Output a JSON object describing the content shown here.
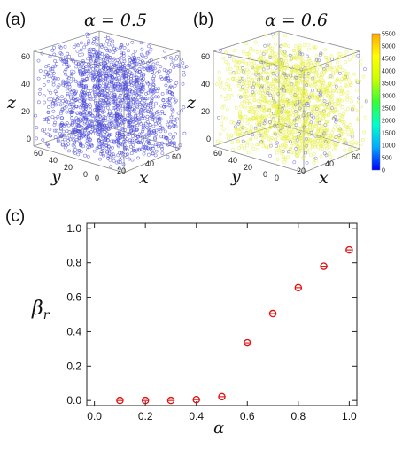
{
  "chart_data": [
    {
      "id": "a",
      "panel_label": "(a)",
      "type": "scatter3d",
      "title": "α = 0.5",
      "axes": {
        "x": "x",
        "y": "y",
        "z": "z"
      },
      "ticks": {
        "x": [
          "0",
          "20",
          "40",
          "60"
        ],
        "y": [
          "0",
          "20",
          "40",
          "60"
        ],
        "z": [
          "0",
          "20",
          "40",
          "60"
        ]
      },
      "point_color": "#4a4ad8",
      "description": "uniform cloud of points colored low on colorbar"
    },
    {
      "id": "b",
      "panel_label": "(b)",
      "type": "scatter3d",
      "title": "α = 0.6",
      "axes": {
        "x": "x",
        "y": "y",
        "z": "z"
      },
      "ticks": {
        "x": [
          "0",
          "20",
          "40",
          "60"
        ],
        "y": [
          "0",
          "20",
          "40",
          "60"
        ],
        "z": [
          "0",
          "20",
          "40",
          "60"
        ]
      },
      "point_color": "#e6ef3a",
      "minority_color": "#6a6ad8",
      "colorbar": {
        "ticks": [
          "0",
          "500",
          "1000",
          "1500",
          "2000",
          "2500",
          "3000",
          "3500",
          "4000",
          "4500",
          "5000",
          "5500"
        ],
        "range": [
          0,
          5500
        ],
        "colors": [
          "#0000ff",
          "#00aaff",
          "#00ffcc",
          "#33ff33",
          "#ccff00",
          "#ffff00",
          "#ffaa00"
        ]
      }
    },
    {
      "id": "c",
      "panel_label": "(c)",
      "type": "scatter",
      "xlabel": "α",
      "ylabel": "βr",
      "xlim": [
        -0.03,
        1.03
      ],
      "ylim": [
        -0.03,
        1.03
      ],
      "xticks": [
        0.0,
        0.2,
        0.4,
        0.6,
        0.8,
        1.0
      ],
      "yticks": [
        0.0,
        0.2,
        0.4,
        0.6,
        0.8,
        1.0
      ],
      "xtick_labels": [
        "0.0",
        "0.2",
        "0.4",
        "0.6",
        "0.8",
        "1.0"
      ],
      "ytick_labels": [
        "0.0",
        "0.2",
        "0.4",
        "0.6",
        "0.8",
        "1.0"
      ],
      "marker_color": "#e01010",
      "x": [
        0.1,
        0.2,
        0.3,
        0.4,
        0.5,
        0.6,
        0.7,
        0.8,
        0.9,
        1.0
      ],
      "y": [
        0.0,
        0.0,
        0.0,
        0.005,
        0.022,
        0.335,
        0.505,
        0.655,
        0.78,
        0.875
      ]
    }
  ]
}
